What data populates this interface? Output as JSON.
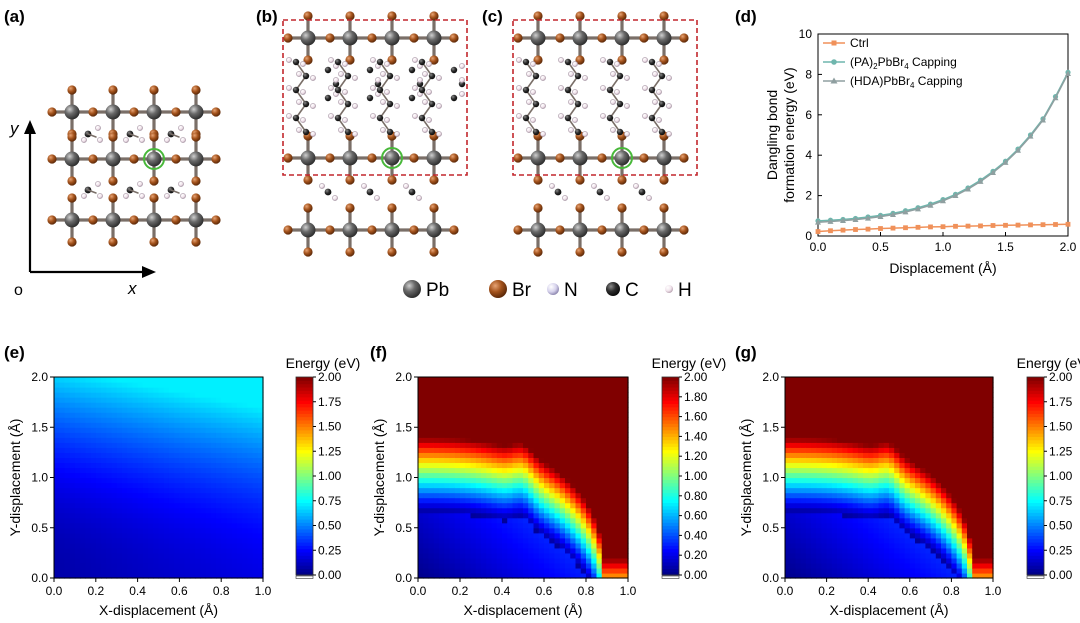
{
  "panel_labels": {
    "a": "(a)",
    "b": "(b)",
    "c": "(c)",
    "d": "(d)",
    "e": "(e)",
    "f": "(f)",
    "g": "(g)"
  },
  "axis_a": {
    "y": "y",
    "x": "x",
    "origin": "o"
  },
  "atom_legend": [
    {
      "label": "Pb",
      "color": "#5a5a5a"
    },
    {
      "label": "Br",
      "color": "#a4531c"
    },
    {
      "label": "N",
      "color": "#d8d4ee"
    },
    {
      "label": "C",
      "color": "#2e2e2e"
    },
    {
      "label": "H",
      "color": "#f0e0ea"
    }
  ],
  "colors": {
    "pb": "#5a5a5a",
    "br": "#a4531c",
    "c": "#252525",
    "h": "#ece0ea",
    "frame": "#c2272d",
    "ring": "#48b83a",
    "bond": "#7a6f68"
  },
  "chart_data": [
    {
      "type": "line",
      "panel": "(d)",
      "xlabel": "Displacement (Å)",
      "ylabel_lines": [
        "Dangling bond",
        "formation energy (eV)"
      ],
      "xlim": [
        0,
        2.0
      ],
      "ylim": [
        0,
        10
      ],
      "xticks": [
        "0.0",
        "0.5",
        "1.0",
        "1.5",
        "2.0"
      ],
      "yticks": [
        "0",
        "2",
        "4",
        "6",
        "8",
        "10"
      ],
      "legend_position": "top-left",
      "x": [
        0.0,
        0.1,
        0.2,
        0.3,
        0.4,
        0.5,
        0.6,
        0.7,
        0.8,
        0.9,
        1.0,
        1.1,
        1.2,
        1.3,
        1.4,
        1.5,
        1.6,
        1.7,
        1.8,
        1.9,
        2.0
      ],
      "series": [
        {
          "name": "Ctrl",
          "color": "#f0915a",
          "marker": "square",
          "values": [
            0.22,
            0.26,
            0.29,
            0.32,
            0.34,
            0.37,
            0.39,
            0.41,
            0.43,
            0.45,
            0.46,
            0.48,
            0.49,
            0.5,
            0.52,
            0.53,
            0.54,
            0.55,
            0.56,
            0.57,
            0.58
          ]
        },
        {
          "name": "(PA)₂PbBr₄ Capping",
          "color": "#6fb6ad",
          "marker": "circle",
          "values": [
            0.75,
            0.78,
            0.82,
            0.87,
            0.94,
            1.02,
            1.12,
            1.25,
            1.4,
            1.58,
            1.8,
            2.06,
            2.38,
            2.76,
            3.2,
            3.7,
            4.3,
            5.0,
            5.8,
            6.9,
            8.1
          ]
        },
        {
          "name": "(HDA)PbBr₄ Capping",
          "color": "#8f9fa0",
          "marker": "triangle",
          "values": [
            0.68,
            0.72,
            0.76,
            0.81,
            0.88,
            0.96,
            1.06,
            1.19,
            1.34,
            1.52,
            1.74,
            2.0,
            2.32,
            2.7,
            3.14,
            3.64,
            4.24,
            4.94,
            5.74,
            6.84,
            8.04
          ]
        }
      ]
    },
    {
      "type": "heatmap",
      "panel": "(e)",
      "xlabel": "X-displacement (Å)",
      "ylabel": "Y-displacement (Å)",
      "xlim": [
        0,
        1.0
      ],
      "ylim": [
        0,
        2.0
      ],
      "xticks": [
        "0.0",
        "0.2",
        "0.4",
        "0.6",
        "0.8",
        "1.0"
      ],
      "yticks": [
        "0.0",
        "0.5",
        "1.0",
        "1.5",
        "2.0"
      ],
      "colorbar_title": "Energy (eV)",
      "clim": [
        0,
        2.0
      ],
      "colorbar_ticks": [
        "0.00",
        "0.25",
        "0.50",
        "0.75",
        "1.00",
        "1.25",
        "1.50",
        "1.75",
        "2.00"
      ],
      "model": {
        "base": 0.08,
        "kx": 0.2,
        "ky": 0.58,
        "cap": 0.72
      }
    },
    {
      "type": "heatmap",
      "panel": "(f)",
      "xlabel": "X-displacement (Å)",
      "ylabel": "Y-displacement (Å)",
      "xlim": [
        0,
        1.0
      ],
      "ylim": [
        0,
        2.0
      ],
      "xticks": [
        "0.0",
        "0.2",
        "0.4",
        "0.6",
        "0.8",
        "1.0"
      ],
      "yticks": [
        "0.0",
        "0.5",
        "1.0",
        "1.5",
        "2.0"
      ],
      "colorbar_title": "Energy (eV)",
      "clim": [
        0,
        2.0
      ],
      "colorbar_ticks": [
        "0.00",
        "0.20",
        "0.40",
        "0.60",
        "0.80",
        "1.00",
        "1.20",
        "1.40",
        "1.60",
        "1.80",
        "2.00"
      ],
      "model": {
        "y0": 1.2,
        "xs": 0.88,
        "bump_x": 0.5,
        "bump_h": 0.1
      }
    },
    {
      "type": "heatmap",
      "panel": "(g)",
      "xlabel": "X-displacement (Å)",
      "ylabel": "Y-displacement (Å)",
      "xlim": [
        0,
        1.0
      ],
      "ylim": [
        0,
        2.0
      ],
      "xticks": [
        "0.0",
        "0.2",
        "0.4",
        "0.6",
        "0.8",
        "1.0"
      ],
      "yticks": [
        "0.0",
        "0.5",
        "1.0",
        "1.5",
        "2.0"
      ],
      "colorbar_title": "Energy (eV)",
      "clim": [
        0,
        2.0
      ],
      "colorbar_ticks": [
        "0.00",
        "0.25",
        "0.50",
        "0.75",
        "1.00",
        "1.25",
        "1.50",
        "1.75",
        "2.00"
      ],
      "model": {
        "y0": 1.2,
        "xs": 0.9,
        "bump_x": 0.5,
        "bump_h": 0.1
      }
    }
  ]
}
